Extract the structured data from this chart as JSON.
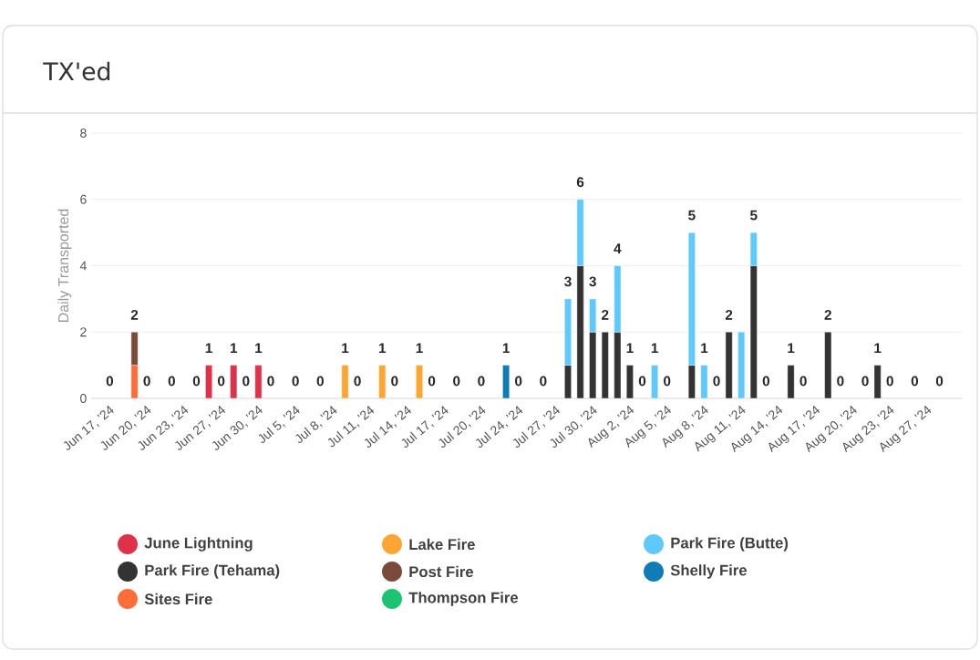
{
  "chart_data": {
    "type": "bar",
    "title": "TX'ed",
    "ylabel": "Daily Transported",
    "stacked": true,
    "grid": "y",
    "legend": "bottom",
    "ylim": [
      0,
      8
    ],
    "yticks": [
      0,
      2,
      4,
      6,
      8
    ],
    "categories": [
      "Jun 17, '24",
      null,
      null,
      "Jun 20, '24",
      null,
      null,
      "Jun 23, '24",
      null,
      null,
      "Jun 27, '24",
      null,
      null,
      "Jun 30, '24",
      null,
      null,
      "Jul 5, '24",
      null,
      null,
      "Jul 8, '24",
      null,
      null,
      "Jul 11, '24",
      null,
      null,
      "Jul 14, '24",
      null,
      null,
      "Jul 17, '24",
      null,
      null,
      "Jul 20, '24",
      null,
      null,
      "Jul 24, '24",
      null,
      null,
      "Jul 27, '24",
      null,
      null,
      "Jul 30, '24",
      null,
      null,
      "Aug 2, '24",
      null,
      null,
      "Aug 5, '24",
      null,
      null,
      "Aug 8, '24",
      null,
      null,
      "Aug 11, '24",
      null,
      null,
      "Aug 14, '24",
      null,
      null,
      "Aug 17, '24",
      null,
      null,
      "Aug 20, '24",
      null,
      null,
      "Aug 23, '24",
      null,
      null,
      "Aug 27, '24",
      null
    ],
    "series": [
      {
        "name": "June Lightning",
        "color": "#e0314b",
        "values": [
          0,
          null,
          null,
          0,
          null,
          0,
          null,
          0,
          1,
          0,
          1,
          0,
          1,
          0,
          null,
          0,
          null,
          0,
          null,
          null,
          0,
          null,
          null,
          0,
          null,
          null,
          0,
          null,
          0,
          null,
          0,
          null,
          null,
          0,
          null,
          0,
          null,
          null,
          null,
          null,
          null,
          null,
          null,
          0,
          null,
          0,
          null,
          null,
          null,
          0,
          null,
          null,
          null,
          0,
          null,
          null,
          0,
          null,
          null,
          0,
          null,
          0,
          null,
          0,
          null,
          0,
          null,
          0
        ]
      },
      {
        "name": "Park Fire (Tehama)",
        "color": "#333333",
        "values": [
          0,
          null,
          null,
          0,
          null,
          0,
          null,
          0,
          null,
          0,
          null,
          0,
          null,
          0,
          null,
          0,
          null,
          0,
          null,
          null,
          0,
          null,
          null,
          0,
          null,
          null,
          0,
          null,
          0,
          null,
          0,
          null,
          null,
          0,
          null,
          0,
          null,
          1,
          4,
          2,
          2,
          2,
          1,
          0,
          null,
          0,
          null,
          1,
          null,
          0,
          2,
          null,
          4,
          0,
          null,
          1,
          0,
          null,
          2,
          0,
          null,
          0,
          1,
          0,
          null,
          0,
          null,
          0
        ]
      },
      {
        "name": "Sites Fire",
        "color": "#ff6d38",
        "values": [
          0,
          null,
          1,
          0,
          null,
          0,
          null,
          0,
          null,
          0,
          null,
          0,
          null,
          0,
          null,
          0,
          null,
          0,
          null,
          null,
          0,
          null,
          null,
          0,
          null,
          null,
          0,
          null,
          0,
          null,
          0,
          null,
          null,
          0,
          null,
          0,
          null,
          null,
          null,
          null,
          null,
          null,
          null,
          0,
          null,
          0,
          null,
          null,
          null,
          0,
          null,
          null,
          null,
          0,
          null,
          null,
          0,
          null,
          null,
          0,
          null,
          0,
          null,
          0,
          null,
          0,
          null,
          0
        ]
      },
      {
        "name": "Lake Fire",
        "color": "#ffa533",
        "values": [
          0,
          null,
          null,
          0,
          null,
          0,
          null,
          0,
          null,
          0,
          null,
          0,
          null,
          0,
          null,
          0,
          null,
          0,
          null,
          1,
          0,
          null,
          1,
          0,
          null,
          1,
          0,
          null,
          0,
          null,
          0,
          null,
          null,
          0,
          null,
          0,
          null,
          null,
          null,
          null,
          null,
          null,
          null,
          0,
          null,
          0,
          null,
          null,
          null,
          0,
          null,
          null,
          null,
          0,
          null,
          null,
          0,
          null,
          null,
          0,
          null,
          0,
          null,
          0,
          null,
          0,
          null,
          0
        ]
      },
      {
        "name": "Post Fire",
        "color": "#7a4a3a",
        "values": [
          0,
          null,
          1,
          0,
          null,
          0,
          null,
          0,
          null,
          0,
          null,
          0,
          null,
          0,
          null,
          0,
          null,
          0,
          null,
          null,
          0,
          null,
          null,
          0,
          null,
          null,
          0,
          null,
          0,
          null,
          0,
          null,
          null,
          0,
          null,
          0,
          null,
          null,
          null,
          null,
          null,
          null,
          null,
          0,
          null,
          0,
          null,
          null,
          null,
          0,
          null,
          null,
          null,
          0,
          null,
          null,
          0,
          null,
          null,
          0,
          null,
          0,
          null,
          0,
          null,
          0,
          null,
          0
        ]
      },
      {
        "name": "Thompson Fire",
        "color": "#1dc46f",
        "values": [
          0,
          null,
          null,
          0,
          null,
          0,
          null,
          0,
          null,
          0,
          null,
          0,
          null,
          0,
          null,
          0,
          null,
          0,
          null,
          null,
          0,
          null,
          null,
          0,
          null,
          null,
          0,
          null,
          0,
          null,
          0,
          null,
          null,
          0,
          null,
          0,
          null,
          null,
          null,
          null,
          null,
          null,
          null,
          0,
          null,
          0,
          null,
          null,
          null,
          0,
          null,
          null,
          null,
          0,
          null,
          null,
          0,
          null,
          null,
          0,
          null,
          0,
          null,
          0,
          null,
          0,
          null,
          0
        ]
      },
      {
        "name": "Park Fire (Butte)",
        "color": "#60c9fb",
        "values": [
          0,
          null,
          null,
          0,
          null,
          0,
          null,
          0,
          null,
          0,
          null,
          0,
          null,
          0,
          null,
          0,
          null,
          0,
          null,
          null,
          0,
          null,
          null,
          0,
          null,
          null,
          0,
          null,
          0,
          null,
          0,
          null,
          null,
          0,
          null,
          0,
          null,
          2,
          2,
          1,
          null,
          2,
          null,
          0,
          1,
          0,
          null,
          4,
          1,
          0,
          null,
          2,
          1,
          0,
          null,
          null,
          0,
          null,
          null,
          0,
          null,
          0,
          null,
          0,
          null,
          0,
          null,
          0
        ]
      },
      {
        "name": "Shelly Fire",
        "color": "#0f7cb5",
        "values": [
          0,
          null,
          null,
          0,
          null,
          0,
          null,
          0,
          null,
          0,
          null,
          0,
          null,
          0,
          null,
          0,
          null,
          0,
          null,
          null,
          0,
          null,
          null,
          0,
          null,
          null,
          0,
          null,
          0,
          null,
          0,
          null,
          1,
          0,
          null,
          0,
          null,
          null,
          null,
          null,
          null,
          null,
          null,
          0,
          null,
          0,
          null,
          null,
          null,
          0,
          null,
          null,
          null,
          0,
          null,
          null,
          0,
          null,
          null,
          0,
          null,
          0,
          null,
          0,
          null,
          0,
          null,
          0
        ]
      }
    ],
    "totals": [
      "0",
      null,
      "2",
      "0",
      null,
      "0",
      null,
      "0",
      "1",
      "0",
      "1",
      "0",
      "1",
      "0",
      null,
      "0",
      null,
      "0",
      null,
      "1",
      "0",
      null,
      "1",
      "0",
      null,
      "1",
      "0",
      null,
      "0",
      null,
      "0",
      null,
      "1",
      "0",
      null,
      "0",
      null,
      "3",
      "6",
      "3",
      "2",
      "4",
      "1",
      "0",
      "1",
      "0",
      null,
      "5",
      "1",
      "0",
      "2",
      null,
      "5",
      "0",
      null,
      "1",
      "0",
      null,
      "2",
      "0",
      null,
      "0",
      "1",
      "0",
      null,
      "0",
      null,
      "0"
    ]
  }
}
